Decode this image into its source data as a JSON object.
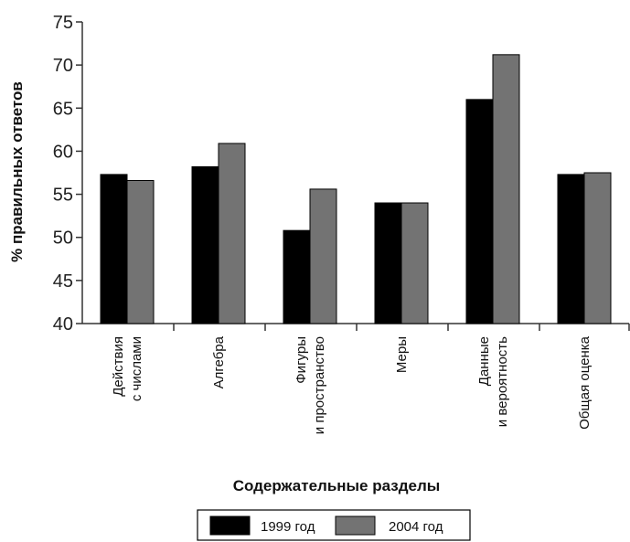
{
  "chart_data": {
    "type": "bar",
    "categories": [
      [
        "Действия",
        "с числами"
      ],
      [
        "Алгебра"
      ],
      [
        "Фигуры",
        "и пространство"
      ],
      [
        "Меры"
      ],
      [
        "Данные",
        "и вероятность"
      ],
      [
        "Общая оценка"
      ]
    ],
    "series": [
      {
        "name": "1999 год",
        "color": "#000000",
        "values": [
          57.3,
          58.2,
          50.8,
          54.0,
          66.0,
          57.3
        ]
      },
      {
        "name": "2004 год",
        "color": "#737373",
        "values": [
          56.6,
          60.9,
          55.6,
          54.0,
          71.2,
          57.5
        ]
      }
    ],
    "xlabel": "Содержательные разделы",
    "ylabel": "% правильных ответов",
    "ylim": [
      40,
      75
    ],
    "yticks": [
      40,
      45,
      50,
      55,
      60,
      65,
      70,
      75
    ],
    "grid": false,
    "legend": "bottom-center"
  }
}
